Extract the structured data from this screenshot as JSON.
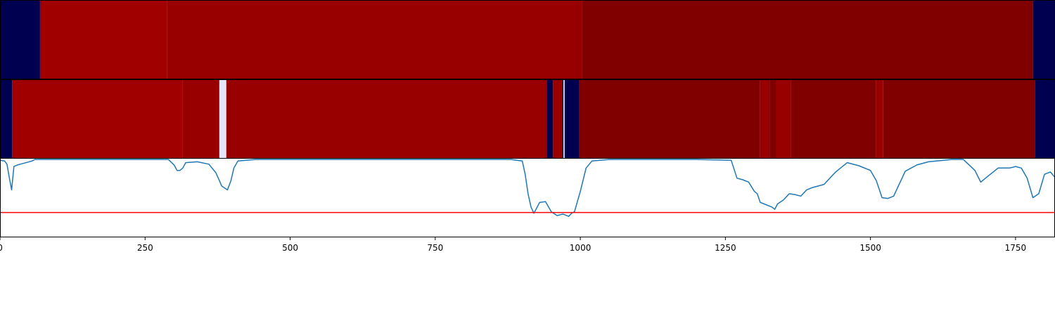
{
  "chart_data": [
    {
      "type": "heatmap",
      "xlim": [
        0,
        1818
      ],
      "colors": {
        "navy": "#000050",
        "red_bright": "#a00000",
        "red_mid": "#980000",
        "red_dark": "#800000",
        "pale": "#e6e6fa"
      },
      "segments": [
        {
          "x0": 0,
          "x1": 69,
          "color": "navy"
        },
        {
          "x0": 69,
          "x1": 288,
          "color": "red_bright"
        },
        {
          "x0": 288,
          "x1": 1003,
          "color": "red_mid"
        },
        {
          "x0": 1003,
          "x1": 1780,
          "color": "red_dark"
        },
        {
          "x0": 1780,
          "x1": 1818,
          "color": "navy"
        }
      ]
    },
    {
      "type": "heatmap",
      "xlim": [
        0,
        1818
      ],
      "colors": {
        "navy": "#000050",
        "red_bright": "#a00000",
        "red_mid": "#980000",
        "red_dark": "#800000",
        "pale": "#e6e6fa"
      },
      "segments": [
        {
          "x0": 0,
          "x1": 21,
          "color": "navy"
        },
        {
          "x0": 21,
          "x1": 315,
          "color": "red_bright"
        },
        {
          "x0": 315,
          "x1": 378,
          "color": "red_mid"
        },
        {
          "x0": 378,
          "x1": 390,
          "color": "pale"
        },
        {
          "x0": 390,
          "x1": 942,
          "color": "red_mid"
        },
        {
          "x0": 942,
          "x1": 953,
          "color": "navy"
        },
        {
          "x0": 953,
          "x1": 969,
          "color": "red_mid"
        },
        {
          "x0": 969,
          "x1": 971,
          "color": "navy"
        },
        {
          "x0": 971,
          "x1": 973,
          "color": "pale"
        },
        {
          "x0": 973,
          "x1": 975,
          "color": "navy"
        },
        {
          "x0": 975,
          "x1": 998,
          "color": "navy"
        },
        {
          "x0": 998,
          "x1": 1310,
          "color": "red_dark"
        },
        {
          "x0": 1310,
          "x1": 1326,
          "color": "red_mid"
        },
        {
          "x0": 1326,
          "x1": 1338,
          "color": "red_dark"
        },
        {
          "x0": 1338,
          "x1": 1363,
          "color": "red_mid"
        },
        {
          "x0": 1363,
          "x1": 1510,
          "color": "red_dark"
        },
        {
          "x0": 1510,
          "x1": 1522,
          "color": "red_mid"
        },
        {
          "x0": 1522,
          "x1": 1784,
          "color": "red_dark"
        },
        {
          "x0": 1784,
          "x1": 1818,
          "color": "navy"
        }
      ]
    },
    {
      "type": "line",
      "xlim": [
        0,
        1818
      ],
      "ylim": [
        0,
        1
      ],
      "xticks": [
        0,
        250,
        500,
        750,
        1000,
        1250,
        1500,
        1750
      ],
      "line_color": "#1f77b4",
      "threshold": 0.31,
      "threshold_color": "#ff0000",
      "series": [
        {
          "x": [
            0,
            8,
            12,
            16,
            20,
            24,
            30,
            40,
            55,
            60,
            80,
            120,
            160,
            200,
            240,
            290,
            300,
            305,
            310,
            315,
            320,
            340,
            360,
            372,
            378,
            382,
            388,
            392,
            398,
            403,
            410,
            440,
            500,
            600,
            700,
            800,
            880,
            900,
            905,
            910,
            915,
            920,
            930,
            940,
            950,
            960,
            970,
            980,
            985,
            990,
            1000,
            1010,
            1020,
            1050,
            1100,
            1200,
            1260,
            1270,
            1280,
            1290,
            1300,
            1305,
            1310,
            1320,
            1330,
            1335,
            1340,
            1350,
            1360,
            1370,
            1380,
            1390,
            1400,
            1420,
            1440,
            1460,
            1480,
            1500,
            1510,
            1520,
            1530,
            1540,
            1560,
            1580,
            1600,
            1640,
            1660,
            1680,
            1690,
            1700,
            1720,
            1740,
            1750,
            1760,
            1770,
            1780,
            1790,
            1800,
            1810,
            1818
          ],
          "y": [
            0.98,
            0.97,
            0.93,
            0.76,
            0.6,
            0.9,
            0.92,
            0.94,
            0.97,
            0.99,
            0.99,
            0.99,
            0.99,
            0.99,
            0.99,
            0.99,
            0.92,
            0.85,
            0.85,
            0.88,
            0.95,
            0.96,
            0.93,
            0.82,
            0.72,
            0.65,
            0.62,
            0.6,
            0.72,
            0.88,
            0.97,
            0.99,
            0.99,
            0.99,
            0.99,
            0.99,
            0.99,
            0.97,
            0.8,
            0.55,
            0.38,
            0.3,
            0.44,
            0.45,
            0.32,
            0.27,
            0.29,
            0.26,
            0.3,
            0.32,
            0.58,
            0.88,
            0.97,
            0.99,
            0.99,
            0.99,
            0.98,
            0.75,
            0.73,
            0.7,
            0.58,
            0.55,
            0.44,
            0.41,
            0.38,
            0.35,
            0.42,
            0.47,
            0.55,
            0.54,
            0.52,
            0.6,
            0.63,
            0.67,
            0.83,
            0.95,
            0.91,
            0.85,
            0.72,
            0.5,
            0.49,
            0.52,
            0.84,
            0.92,
            0.96,
            0.99,
            0.99,
            0.85,
            0.7,
            0.76,
            0.88,
            0.88,
            0.9,
            0.88,
            0.75,
            0.5,
            0.55,
            0.8,
            0.83,
            0.76
          ]
        }
      ]
    }
  ]
}
